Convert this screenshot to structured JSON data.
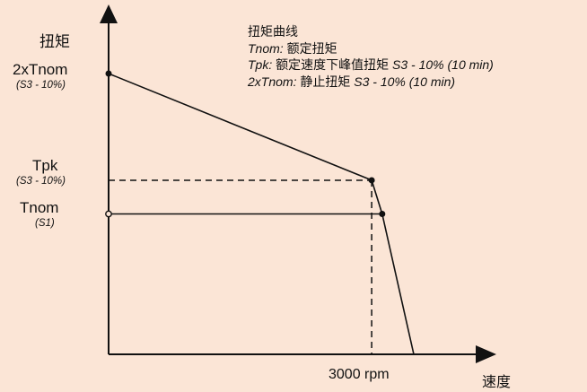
{
  "chart_data": {
    "type": "line",
    "xlabel": "速度",
    "ylabel": "扭矩",
    "x_marker": {
      "value": 3000,
      "label": "3000 rpm"
    },
    "y_levels": [
      {
        "key": "2xTnom",
        "label": "2xTnom",
        "sub": "(S3 - 10%)"
      },
      {
        "key": "Tpk",
        "label": "Tpk",
        "sub": "(S3 - 10%)"
      },
      {
        "key": "Tnom",
        "label": "Tnom",
        "sub": "(S1)"
      }
    ],
    "legend": {
      "title": "扭矩曲线",
      "lines": [
        {
          "term": "Tnom:",
          "desc": "额定扭矩",
          "tail": ""
        },
        {
          "term": "Tpk:",
          "desc": "额定速度下峰值扭矩",
          "tail": "S3 - 10% (10 min)"
        },
        {
          "term": "2xTnom:",
          "desc": "静止扭矩",
          "tail": "S3 - 10% (10 min)"
        }
      ]
    },
    "series": [
      {
        "values": [
          [
            0,
            2.0
          ],
          [
            3000,
            1.24
          ],
          [
            3120,
            1.0
          ],
          [
            3480,
            0.0
          ]
        ]
      },
      {
        "values": [
          [
            0,
            1.0
          ],
          [
            3120,
            1.0
          ]
        ]
      }
    ],
    "axis_units": {
      "x": "rpm",
      "y": "xTnom"
    },
    "colors": {
      "background": "#fbe5d6",
      "line": "#111111"
    }
  }
}
